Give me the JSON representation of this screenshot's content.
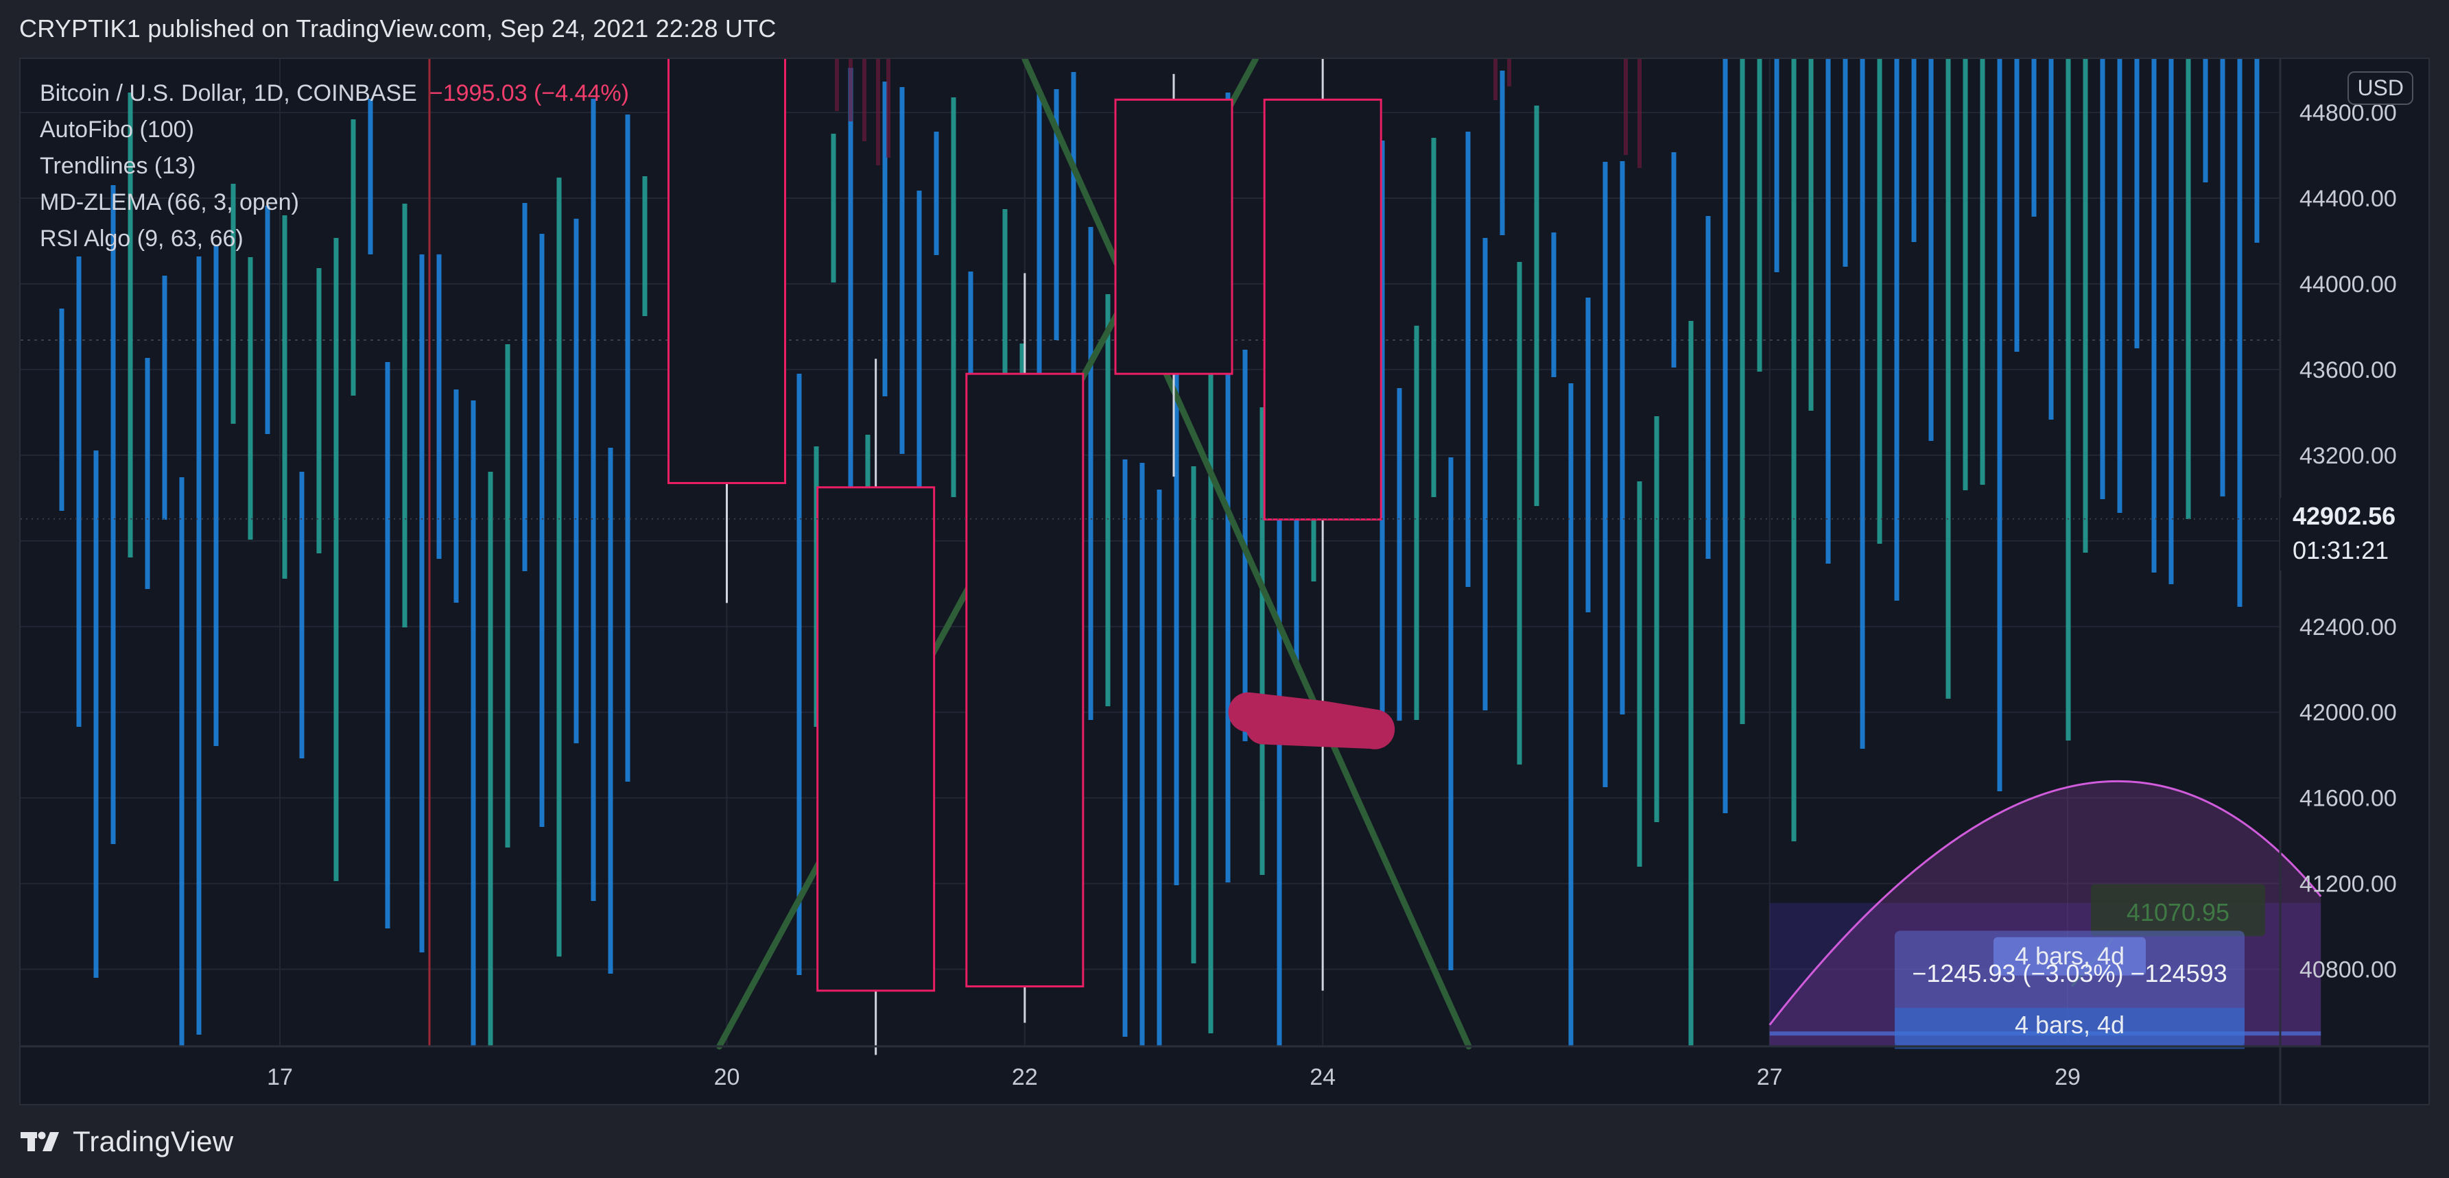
{
  "header": {
    "publish_text": "CRYPTIK1 published on TradingView.com, Sep 24, 2021 22:28 UTC"
  },
  "legend": {
    "symbol": "Bitcoin / U.S. Dollar, 1D, COINBASE",
    "change": "−1995.03 (−4.44%)",
    "indicators": [
      "AutoFibo (100)",
      "Trendlines (13)",
      "MD-ZLEMA (66, 3, open)",
      "RSI Algo (9, 63, 66)"
    ]
  },
  "price_scale": {
    "currency": "USD",
    "last_price": "42902.56",
    "countdown": "01:31:21"
  },
  "footer": {
    "brand": "TradingView"
  },
  "tools": {
    "measure_range": "−1245.93 (−3.03%) −124593",
    "measure_bars_upper": "4 bars, 4d",
    "measure_bars_lower": "4 bars, 4d",
    "target_price": "41070.95"
  },
  "colors": {
    "background": "#131722",
    "bear": "#e91e63",
    "candle_body": "#131722",
    "wick": "#d1d4dc",
    "rsi_blue": "#1e88e5",
    "rsi_teal": "#26a69a",
    "trendline": "#2e5e38",
    "marker": "#b3245a",
    "arc": "#d05cdc"
  },
  "chart_data": {
    "type": "candlestick",
    "symbol": "BTCUSD",
    "interval": "1D",
    "x_tick_labels": [
      "17",
      "20",
      "22",
      "24",
      "27",
      "29"
    ],
    "x_tick_days": [
      17,
      20,
      22,
      24,
      27,
      29
    ],
    "y_tick_labels": [
      "40800.00",
      "41200.00",
      "41600.00",
      "42000.00",
      "42400.00",
      "42800.00",
      "43200.00",
      "43600.00",
      "44000.00",
      "44400.00",
      "44800.00"
    ],
    "y_ticks": [
      40800,
      41200,
      41600,
      42000,
      42400,
      42800,
      43200,
      43600,
      44000,
      44400,
      44800
    ],
    "ylim": [
      40440,
      45050
    ],
    "candles": [
      {
        "day": 20,
        "open": 45100,
        "high": 45100,
        "close": 43070,
        "low": 42510
      },
      {
        "day": 21,
        "open": 43050,
        "high": 43650,
        "close": 40700,
        "low": 40400
      },
      {
        "day": 22,
        "open": 40720,
        "high": 44050,
        "close": 43580,
        "low": 40550
      },
      {
        "day": 23,
        "open": 44860,
        "high": 44980,
        "close": 43580,
        "low": 43100
      },
      {
        "day": 24,
        "open": 44860,
        "high": 45050,
        "close": 42900,
        "low": 40700
      }
    ],
    "trendlines": [
      {
        "from_day": 19.95,
        "from_price": 40440,
        "to_day": 23.55,
        "to_price": 45050
      },
      {
        "from_day": 22.0,
        "from_price": 45050,
        "to_day": 24.98,
        "to_price": 40440
      }
    ],
    "marker": {
      "from_day": 23.5,
      "from_price": 42000,
      "to_day": 24.35,
      "to_price": 41920
    },
    "measure_box": {
      "from_day": 27.0,
      "to_day": 30.7,
      "from_price": 40440,
      "to_price": 41110
    },
    "arc": {
      "from_day": 27.0,
      "from_price": 40540,
      "peak_day": 29.0,
      "peak_price": 41650,
      "to_day": 30.7,
      "to_price": 41140
    },
    "last_price": 42902.56
  }
}
